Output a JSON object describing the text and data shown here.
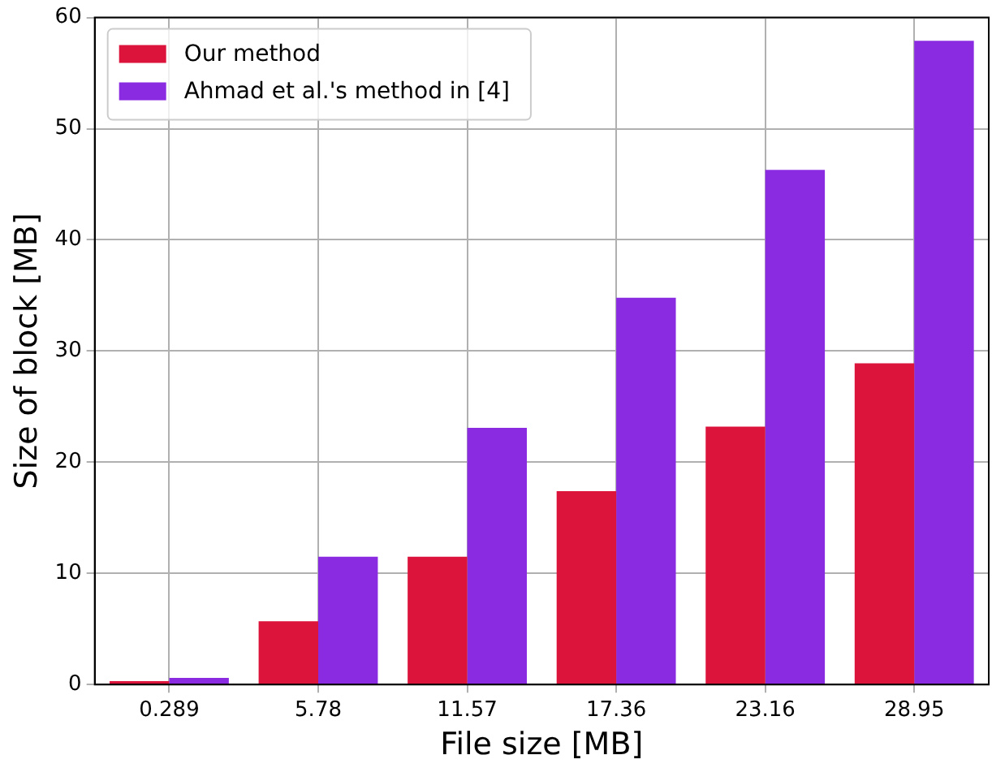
{
  "chart_data": {
    "type": "bar",
    "xlabel": "File size [MB]",
    "ylabel": "Size of block [MB]",
    "categories": [
      "0.289",
      "5.78",
      "11.57",
      "17.36",
      "23.16",
      "28.95"
    ],
    "series": [
      {
        "name": "Our method",
        "color": "#dc143c",
        "values": [
          0.3,
          5.7,
          11.5,
          17.4,
          23.2,
          28.9
        ]
      },
      {
        "name": "Ahmad et al.'s method in [4]",
        "color": "#8a2be2",
        "values": [
          0.6,
          11.5,
          23.1,
          34.8,
          46.3,
          57.9
        ]
      }
    ],
    "ylim": [
      0,
      60
    ],
    "yticks": [
      0,
      10,
      20,
      30,
      40,
      50,
      60
    ],
    "grid": true,
    "legend": "top left"
  }
}
